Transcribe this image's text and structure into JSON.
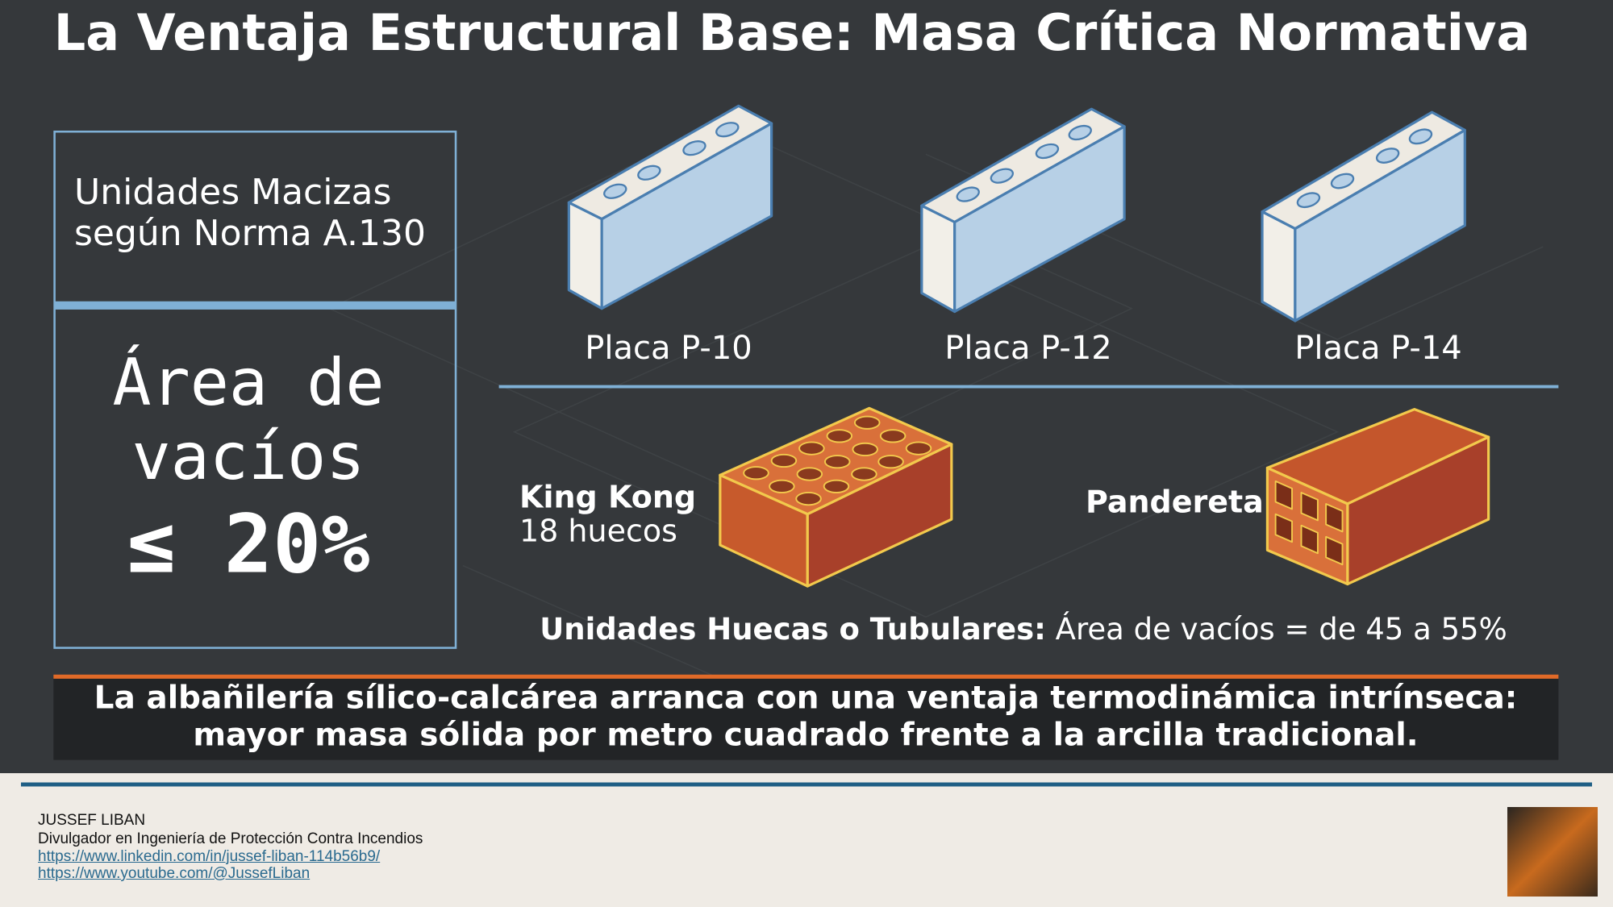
{
  "header": {
    "title": "La Ventaja Estructural Base: Masa Crítica Normativa"
  },
  "solid_panel": {
    "heading_lines": [
      "Unidades Macizas",
      "según Norma A.130"
    ],
    "void_lines": [
      "Área de",
      "vacíos",
      "≤ 20%"
    ]
  },
  "plates": [
    {
      "label": "Placa P-10"
    },
    {
      "label": "Placa P-12"
    },
    {
      "label": "Placa P-14"
    }
  ],
  "bricks": {
    "king_kong": {
      "name": "King Kong",
      "detail": "18 huecos"
    },
    "pandereta": {
      "name": "Pandereta"
    }
  },
  "hollow_note": {
    "bold": "Unidades Huecas o Tubulares:",
    "text": "Área de vacíos = de 45 a 55%"
  },
  "banner": {
    "lines": [
      "La albañilería sílico-calcárea arranca con una ventaja termodinámica intrínseca:",
      "mayor masa sólida por metro cuadrado frente a la arcilla tradicional."
    ]
  },
  "footer": {
    "name": "JUSSEF LIBAN",
    "role": "Divulgador en Ingeniería de Protección Contra Incendios",
    "links": [
      "https://www.linkedin.com/in/jussef-liban-114b56b9/",
      "https://www.youtube.com/@JussefLiban"
    ]
  }
}
